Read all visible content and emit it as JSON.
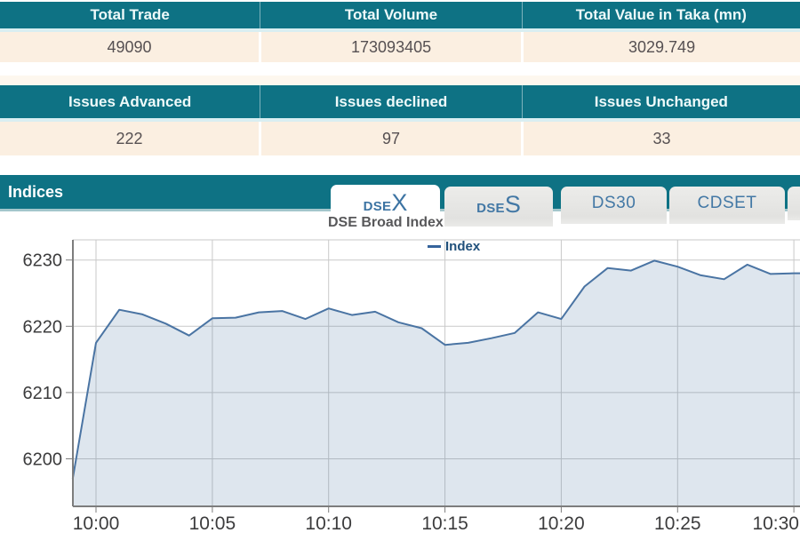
{
  "tables": [
    {
      "headers": [
        "Total Trade",
        "Total Volume",
        "Total Value in Taka (mn)"
      ],
      "values": [
        "49090",
        "173093405",
        "3029.749"
      ]
    },
    {
      "headers": [
        "Issues Advanced",
        "Issues declined",
        "Issues Unchanged"
      ],
      "values": [
        "222",
        "97",
        "33"
      ]
    }
  ],
  "indices_bar": {
    "title": "Indices"
  },
  "tabs": [
    {
      "small": "DSE",
      "large": "X",
      "active": true
    },
    {
      "small": "DSE",
      "large": "S",
      "active": false
    },
    {
      "label": "DS30",
      "active": false
    },
    {
      "label": "CDSET",
      "active": false
    }
  ],
  "chart_data": {
    "type": "area",
    "title": "DSE Broad Index",
    "xlabel": "",
    "ylabel": "",
    "legend": [
      {
        "name": "Index",
        "color": "#35639b"
      }
    ],
    "legend_position": "top-center",
    "grid": true,
    "x_axis_time_range": [
      "09:59",
      "10:30"
    ],
    "x_ticks": [
      {
        "minute": 0,
        "label": "10:00"
      },
      {
        "minute": 5,
        "label": "10:05"
      },
      {
        "minute": 10,
        "label": "10:10"
      },
      {
        "minute": 15,
        "label": "10:15"
      },
      {
        "minute": 20,
        "label": "10:20"
      },
      {
        "minute": 25,
        "label": "10:25"
      },
      {
        "minute": 30,
        "label": "10:30"
      }
    ],
    "y_ticks": [
      6200,
      6210,
      6220,
      6230
    ],
    "ylim": [
      6193,
      6233
    ],
    "series": [
      {
        "name": "Index",
        "points": [
          [
            -1,
            6197.0
          ],
          [
            0,
            6217.5
          ],
          [
            1,
            6222.5
          ],
          [
            2,
            6221.8
          ],
          [
            3,
            6220.4
          ],
          [
            4,
            6218.6
          ],
          [
            5,
            6221.2
          ],
          [
            6,
            6221.3
          ],
          [
            7,
            6222.1
          ],
          [
            8,
            6222.3
          ],
          [
            9,
            6221.1
          ],
          [
            10,
            6222.7
          ],
          [
            11,
            6221.7
          ],
          [
            12,
            6222.2
          ],
          [
            13,
            6220.6
          ],
          [
            14,
            6219.7
          ],
          [
            15,
            6217.2
          ],
          [
            16,
            6217.5
          ],
          [
            17,
            6218.2
          ],
          [
            18,
            6219.0
          ],
          [
            19,
            6222.1
          ],
          [
            20,
            6221.1
          ],
          [
            21,
            6226.0
          ],
          [
            22,
            6228.8
          ],
          [
            23,
            6228.4
          ],
          [
            24,
            6229.9
          ],
          [
            25,
            6229.0
          ],
          [
            26,
            6227.7
          ],
          [
            27,
            6227.1
          ],
          [
            28,
            6229.3
          ],
          [
            29,
            6227.9
          ],
          [
            30,
            6228.0
          ]
        ]
      }
    ],
    "colors": {
      "line": "#4a74a3",
      "fill": "rgba(74,116,163,0.18)",
      "grid": "#c9c9c9",
      "axis": "#7d7d7d",
      "label": "#3c3c3d",
      "legend_marker": "#35639b",
      "legend_text": "#20507b"
    }
  },
  "colors": {
    "teal_header": "#0e7284",
    "teal_cell_separator": "#7db3bd",
    "cream_row": "#fbefe1",
    "bar_bottom_border": "#a3c6cb",
    "value_text": "#565052",
    "tab_bg": "#e7e7e5",
    "tab_text": "#4378a5",
    "chart_title_text": "#58585a"
  }
}
